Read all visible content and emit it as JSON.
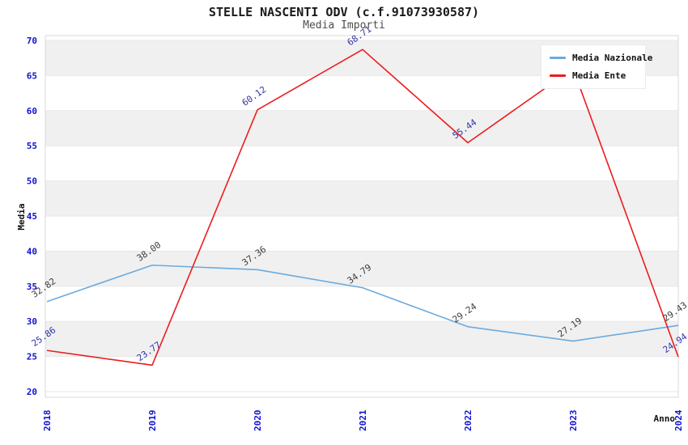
{
  "title": "STELLE NASCENTI ODV (c.f.91073930587)",
  "subtitle": "Media Importi",
  "legend": {
    "position": "top-right",
    "items": [
      {
        "label": "Media Nazionale",
        "color": "#6aabdf"
      },
      {
        "label": "Media Ente",
        "color": "#ed1c1c"
      }
    ]
  },
  "colors": {
    "axis_tick": "#1212d0",
    "axis_title": "#111111",
    "band": "#f0f0f0",
    "grid": "#e7e7e7",
    "border": "#d9d9d9",
    "background": "#ffffff"
  },
  "chart_data": {
    "type": "line",
    "title": "STELLE NASCENTI ODV (c.f.91073930587)",
    "subtitle": "Media Importi",
    "xlabel": "Anno",
    "ylabel": "Media",
    "x": [
      "2018",
      "2019",
      "2020",
      "2021",
      "2022",
      "2023",
      "2024"
    ],
    "ylim": [
      20,
      70
    ],
    "ytick_step": 5,
    "grid": "horizontal-bands",
    "legend_position": "top-right",
    "series": [
      {
        "name": "Media Nazionale",
        "color": "#6aabdf",
        "label_color": "#3c3c3c",
        "values": [
          32.82,
          38.0,
          37.36,
          34.79,
          29.24,
          27.19,
          29.43
        ],
        "labels": [
          "32.82",
          "38.00",
          "37.36",
          "34.79",
          "29.24",
          "27.19",
          "29.43"
        ]
      },
      {
        "name": "Media Ente",
        "color": "#ed1c1c",
        "label_color": "#3333aa",
        "values": [
          25.86,
          23.77,
          60.12,
          68.71,
          55.44,
          66.0,
          24.94
        ],
        "labels": [
          "25.86",
          "23.77",
          "60.12",
          "68.71",
          "55.44",
          null,
          "24.94"
        ],
        "note": "2023 label hidden behind legend; value estimated from line"
      }
    ]
  }
}
